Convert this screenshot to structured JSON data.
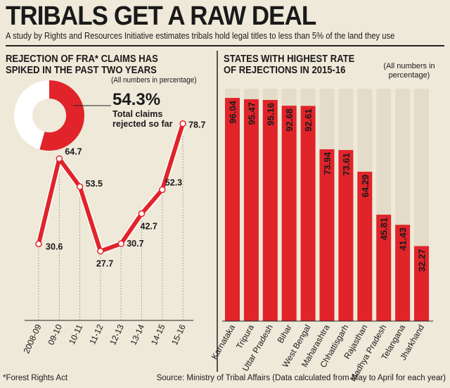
{
  "header": {
    "title": "TRIBALS GET A RAW DEAL",
    "subtitle": "A study by Rights and Resources Initiative estimates tribals hold legal titles to less than 5% of the land they use"
  },
  "left_panel": {
    "title_line1": "REJECTION OF FRA* CLAIMS HAS",
    "title_line2": "SPIKED IN THE PAST TWO YEARS",
    "note": "(All numbers in percentage)",
    "donut_value": 54.3,
    "donut_label": "54.3%",
    "donut_caption": "Total claims rejected so far"
  },
  "right_panel": {
    "title_line1": "STATES WITH HIGHEST RATE",
    "title_line2": "OF REJECTIONS IN 2015-16",
    "note": "(All numbers in percentage)"
  },
  "footer": {
    "footnote": "*Forest Rights Act",
    "source": "Source: Ministry of Tribal Affairs (Data calculated from May to April for each year)"
  },
  "colors": {
    "accent": "#e0242a",
    "background": "#efe9da",
    "bar_background": "#e4dcc8"
  },
  "chart_data": [
    {
      "type": "line",
      "title": "REJECTION OF FRA* CLAIMS HAS SPIKED IN THE PAST TWO YEARS",
      "categories": [
        "2008-09",
        "09-10",
        "10-11",
        "11-12",
        "12-13",
        "13-14",
        "14-15",
        "15-16"
      ],
      "values": [
        30.6,
        64.7,
        53.5,
        27.7,
        30.7,
        42.7,
        52.3,
        78.7
      ],
      "labels": [
        "30.6",
        "64.7",
        "53.5",
        "27.7",
        "30.7",
        "42.7",
        "52.3",
        "78.7"
      ],
      "ylim": [
        0,
        100
      ],
      "grid": false
    },
    {
      "type": "bar",
      "title": "STATES WITH HIGHEST RATE OF REJECTIONS IN 2015-16",
      "categories": [
        "Karnataka",
        "Tripura",
        "Uttar Pradesh",
        "Bihar",
        "West Bengal",
        "Maharashtra",
        "Chhattisgarh",
        "Rajasthan",
        "Madhya Pradesh",
        "Telangana",
        "Jharkhand"
      ],
      "values": [
        96.04,
        95.47,
        95.16,
        92.68,
        92.61,
        73.94,
        73.61,
        64.29,
        45.81,
        41.43,
        32.27
      ],
      "labels": [
        "96.04",
        "95.47",
        "95.16",
        "92.68",
        "92.61",
        "73.94",
        "73.61",
        "64.29",
        "45.81",
        "41.43",
        "32.27"
      ],
      "ylim": [
        0,
        100
      ],
      "grid": false
    }
  ]
}
